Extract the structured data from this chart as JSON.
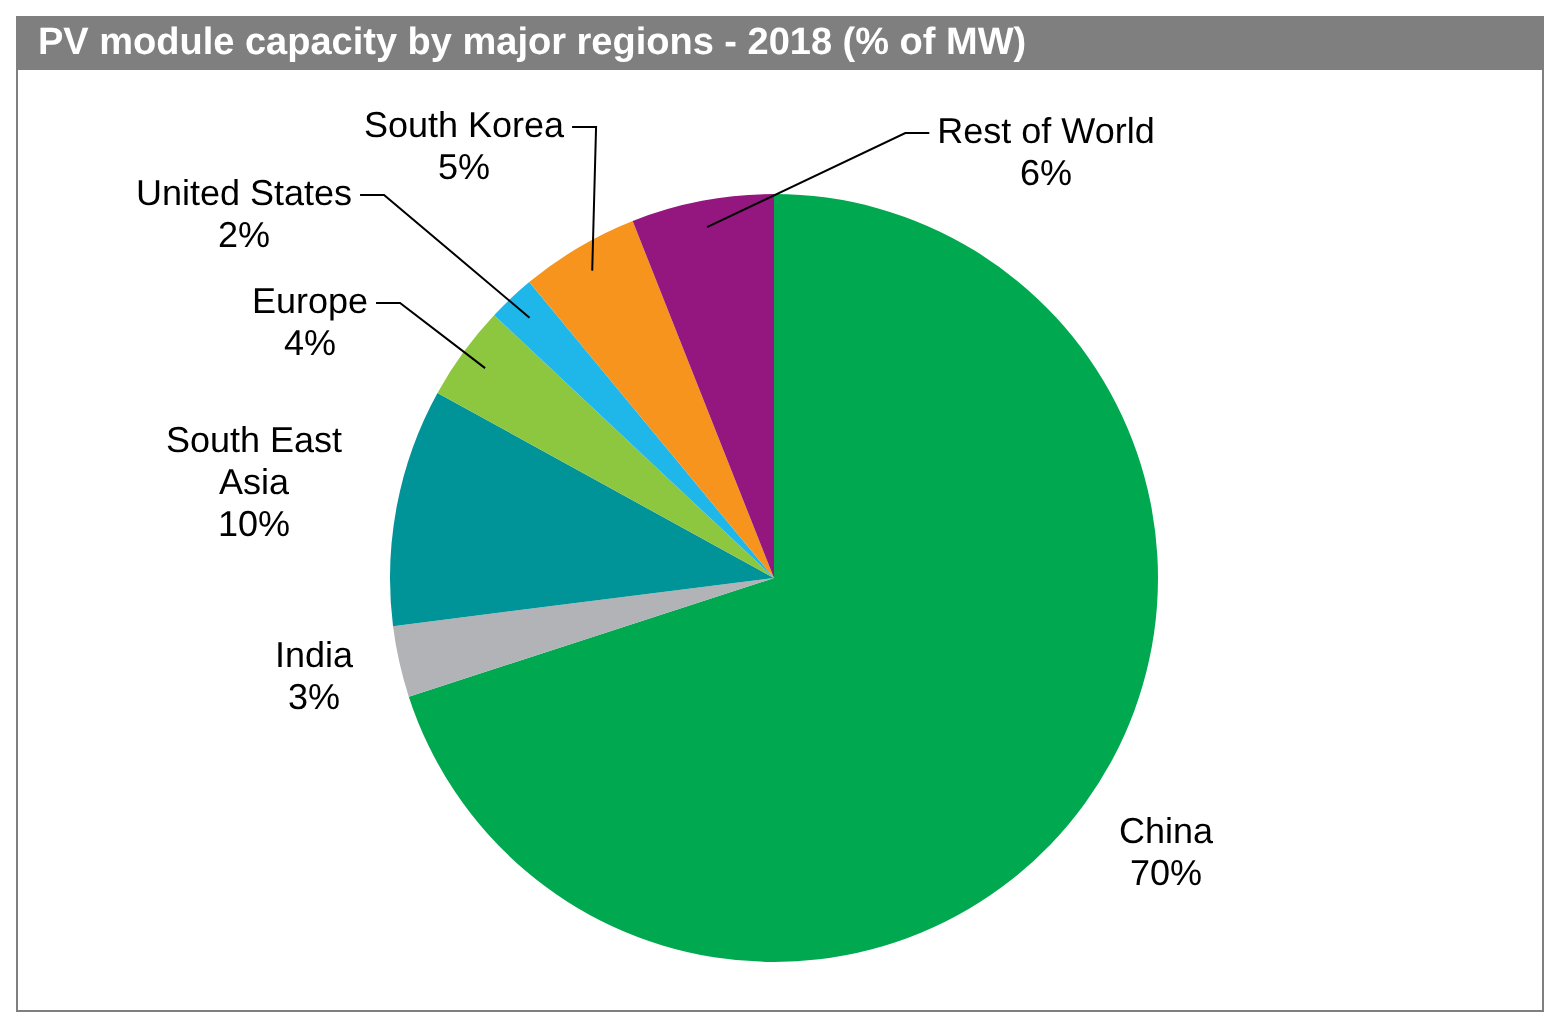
{
  "chart_data": {
    "type": "pie",
    "title": "PV module capacity by major regions - 2018 (% of MW)",
    "categories": [
      "China",
      "India",
      "South East Asia",
      "Europe",
      "United States",
      "South Korea",
      "Rest of World"
    ],
    "values": [
      70,
      3,
      10,
      4,
      2,
      5,
      6
    ],
    "value_labels": [
      "70%",
      "3%",
      "10%",
      "4%",
      "2%",
      "5%",
      "6%"
    ],
    "colors": [
      "#00a84f",
      "#b1b3b6",
      "#009499",
      "#8dc63f",
      "#1fb7ea",
      "#f7941d",
      "#93177f"
    ],
    "legend": false
  }
}
